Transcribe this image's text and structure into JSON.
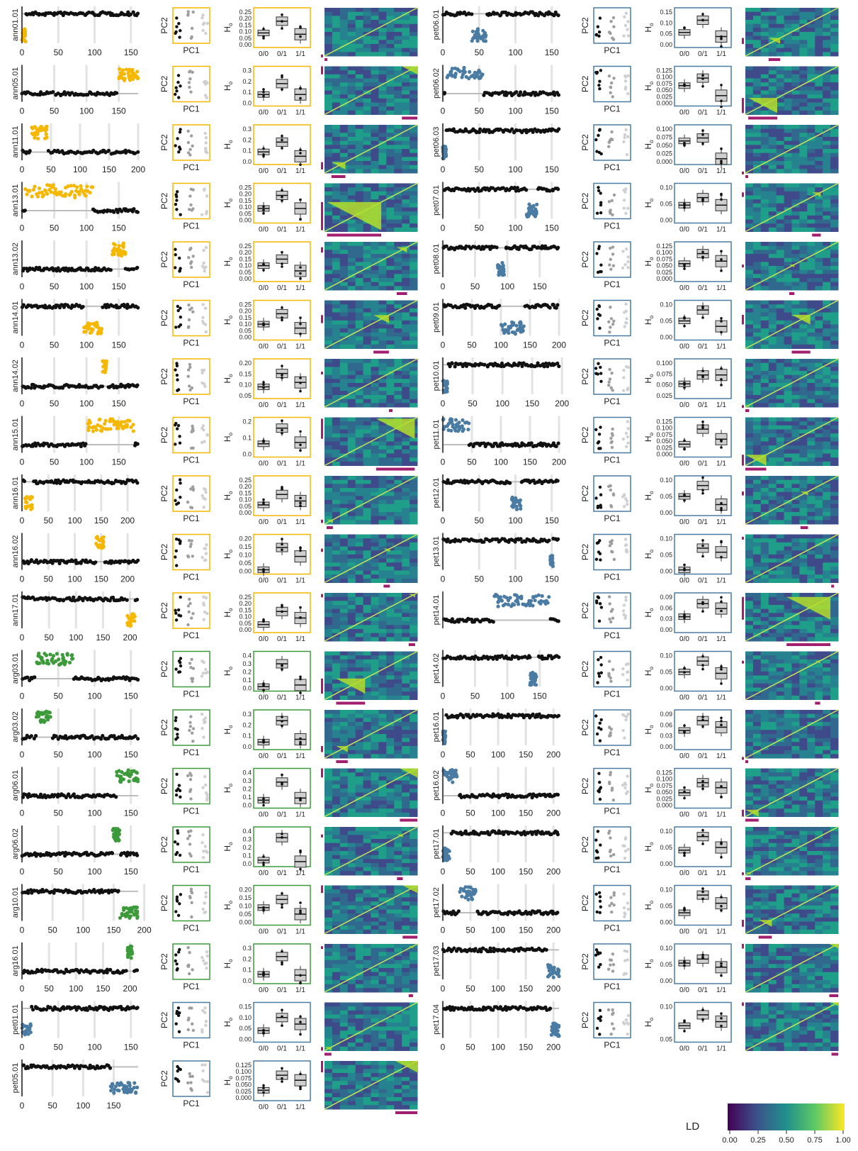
{
  "colors": {
    "annuus": "#F5B700",
    "argophyllus": "#3D9A3A",
    "petiolaris": "#4A7BA3",
    "black": "#111111",
    "grey": "#BDBDBD",
    "ld_bar": "#A21E6F",
    "frame_grey": "#4A7BA3"
  },
  "labels": {
    "pc1": "PC1",
    "pc2": "PC2",
    "ho": "H",
    "ho_sub": "o",
    "genotypes": [
      "0/0",
      "0/1",
      "1/1"
    ]
  },
  "legend": {
    "title": "LD",
    "ticks": [
      "0.00",
      "0.25",
      "0.50",
      "0.75",
      "1.00"
    ]
  },
  "chart_data": {
    "type": "multi-panel",
    "panel_types": [
      "scatter",
      "scatter",
      "box",
      "heatmap"
    ],
    "regions": [
      {
        "name": "ann01.01",
        "group": "annuus",
        "xticks": [
          "0",
          "50",
          "100",
          "150"
        ],
        "xmax": 160,
        "inv": [
          0,
          5
        ],
        "hi": false,
        "ho_ticks": [
          "0.00",
          "0.05",
          "0.10",
          "0.15",
          "0.20",
          "0.25"
        ],
        "ho_max": 0.25,
        "ho": [
          0.09,
          0.18,
          0.08
        ]
      },
      {
        "name": "ann05.01",
        "group": "annuus",
        "xticks": [
          "0",
          "50",
          "100",
          "150"
        ],
        "xmax": 180,
        "inv": [
          150,
          180
        ],
        "hi": true,
        "ho_ticks": [
          "0.0",
          "0.1",
          "0.2",
          "0.3"
        ],
        "ho_max": 0.3,
        "ho": [
          0.08,
          0.18,
          0.08
        ]
      },
      {
        "name": "ann11.01",
        "group": "annuus",
        "xticks": [
          "0",
          "50",
          "100",
          "150",
          "200"
        ],
        "xmax": 200,
        "inv": [
          15,
          45
        ],
        "hi": true,
        "ho_ticks": [
          "0.0",
          "0.1",
          "0.2",
          "0.3"
        ],
        "ho_max": 0.3,
        "ho": [
          0.09,
          0.18,
          0.05
        ]
      },
      {
        "name": "ann13.01",
        "group": "annuus",
        "xticks": [
          "0",
          "50",
          "100",
          "150"
        ],
        "xmax": 180,
        "inv": [
          5,
          110
        ],
        "hi": true,
        "ho_ticks": [
          "0.00",
          "0.05",
          "0.10",
          "0.15",
          "0.20",
          "0.25"
        ],
        "ho_max": 0.25,
        "ho": [
          0.09,
          0.19,
          0.09
        ]
      },
      {
        "name": "ann13.02",
        "group": "annuus",
        "xticks": [
          "0",
          "50",
          "100",
          "150"
        ],
        "xmax": 180,
        "inv": [
          140,
          160
        ],
        "hi": true,
        "ho_ticks": [
          "0.00",
          "0.05",
          "0.10",
          "0.15",
          "0.20",
          "0.25"
        ],
        "ho_max": 0.25,
        "ho": [
          0.1,
          0.15,
          0.06
        ]
      },
      {
        "name": "ann14.01",
        "group": "annuus",
        "xticks": [
          "0",
          "50",
          "100",
          "150"
        ],
        "xmax": 180,
        "inv": [
          95,
          125
        ],
        "hi": false,
        "ho_ticks": [
          "0.00",
          "0.05",
          "0.10",
          "0.15",
          "0.20",
          "0.25"
        ],
        "ho_max": 0.25,
        "ho": [
          0.1,
          0.18,
          0.07
        ]
      },
      {
        "name": "ann14.02",
        "group": "annuus",
        "xticks": [
          "0",
          "50",
          "100",
          "150"
        ],
        "xmax": 180,
        "inv": [
          125,
          132
        ],
        "hi": true,
        "ho_ticks": [
          "0.05",
          "0.10",
          "0.15",
          "0.20"
        ],
        "ho_max": 0.22,
        "ho": [
          0.06,
          0.15,
          0.09
        ]
      },
      {
        "name": "ann15.01",
        "group": "annuus",
        "xticks": [
          "0",
          "50",
          "100",
          "150"
        ],
        "xmax": 180,
        "inv": [
          100,
          175
        ],
        "hi": true,
        "ho_ticks": [
          "0.0",
          "0.1",
          "0.2"
        ],
        "ho_max": 0.25,
        "ho": [
          0.08,
          0.2,
          0.09
        ]
      },
      {
        "name": "ann16.01",
        "group": "annuus",
        "xticks": [
          "0",
          "50",
          "100",
          "150",
          "200"
        ],
        "xmax": 220,
        "inv": [
          5,
          20
        ],
        "hi": false,
        "ho_ticks": [
          "0.00",
          "0.05",
          "0.10",
          "0.15",
          "0.20",
          "0.25"
        ],
        "ho_max": 0.25,
        "ho": [
          0.06,
          0.14,
          0.09
        ]
      },
      {
        "name": "ann16.02",
        "group": "annuus",
        "xticks": [
          "0",
          "50",
          "100",
          "150",
          "200"
        ],
        "xmax": 220,
        "inv": [
          140,
          155
        ],
        "hi": true,
        "ho_ticks": [
          "0.00",
          "0.05",
          "0.10",
          "0.15",
          "0.20"
        ],
        "ho_max": 0.22,
        "ho": [
          0.01,
          0.16,
          0.1
        ]
      },
      {
        "name": "ann17.01",
        "group": "annuus",
        "xticks": [
          "0",
          "50",
          "100",
          "150",
          "200"
        ],
        "xmax": 215,
        "inv": [
          195,
          210
        ],
        "hi": false,
        "ho_ticks": [
          "0.00",
          "0.05",
          "0.10",
          "0.15",
          "0.20",
          "0.25"
        ],
        "ho_max": 0.25,
        "ho": [
          0.04,
          0.14,
          0.09
        ]
      },
      {
        "name": "arg03.01",
        "group": "argophyllus",
        "xticks": [
          "0",
          "50",
          "100",
          "150"
        ],
        "xmax": 160,
        "inv": [
          20,
          70
        ],
        "hi": true,
        "ho_ticks": [
          "0.0",
          "0.1",
          "0.2",
          "0.3",
          "0.4"
        ],
        "ho_max": 0.4,
        "ho": [
          0.02,
          0.3,
          0.04
        ]
      },
      {
        "name": "arg03.02",
        "group": "argophyllus",
        "xticks": [
          "0",
          "50",
          "100",
          "150"
        ],
        "xmax": 160,
        "inv": [
          20,
          40
        ],
        "hi": true,
        "ho_ticks": [
          "0.0",
          "0.1",
          "0.2",
          "0.3"
        ],
        "ho_max": 0.35,
        "ho": [
          0.05,
          0.28,
          0.08
        ]
      },
      {
        "name": "arg06.01",
        "group": "argophyllus",
        "xticks": [
          "0",
          "50",
          "100",
          "150"
        ],
        "xmax": 160,
        "inv": [
          130,
          160
        ],
        "hi": true,
        "ho_ticks": [
          "0.0",
          "0.1",
          "0.2",
          "0.3",
          "0.4"
        ],
        "ho_max": 0.45,
        "ho": [
          0.07,
          0.32,
          0.1
        ]
      },
      {
        "name": "arg06.02",
        "group": "argophyllus",
        "xticks": [
          "0",
          "50",
          "100",
          "150"
        ],
        "xmax": 160,
        "inv": [
          125,
          135
        ],
        "hi": true,
        "ho_ticks": [
          "0.0",
          "0.1",
          "0.2",
          "0.3",
          "0.4"
        ],
        "ho_max": 0.45,
        "ho": [
          0.05,
          0.36,
          0.03
        ]
      },
      {
        "name": "arg10.01",
        "group": "argophyllus",
        "xticks": [
          "0",
          "50",
          "100",
          "150",
          "200"
        ],
        "xmax": 190,
        "inv": [
          160,
          190
        ],
        "hi": false,
        "ho_ticks": [
          "0.00",
          "0.05",
          "0.10",
          "0.15",
          "0.20"
        ],
        "ho_max": 0.2,
        "ho": [
          0.09,
          0.14,
          0.05
        ]
      },
      {
        "name": "arg16.01",
        "group": "argophyllus",
        "xticks": [
          "0",
          "50",
          "100",
          "150",
          "200"
        ],
        "xmax": 215,
        "inv": [
          195,
          205
        ],
        "hi": true,
        "ho_ticks": [
          "0.0",
          "0.1",
          "0.2",
          "0.3"
        ],
        "ho_max": 0.35,
        "ho": [
          0.07,
          0.26,
          0.06
        ]
      },
      {
        "name": "pet01.01",
        "group": "petiolaris",
        "xticks": [
          "0",
          "50",
          "100",
          "150"
        ],
        "xmax": 160,
        "inv": [
          0,
          12
        ],
        "hi": false,
        "ho_ticks": [
          "0.00",
          "0.05",
          "0.10",
          "0.15"
        ],
        "ho_max": 0.15,
        "ho": [
          0.04,
          0.1,
          0.07
        ]
      },
      {
        "name": "pet05.01",
        "group": "petiolaris",
        "xticks": [
          "0",
          "50",
          "100",
          "150"
        ],
        "xmax": 190,
        "inv": [
          145,
          190
        ],
        "hi": false,
        "ho_ticks": [
          "0.000",
          "0.025",
          "0.050",
          "0.075",
          "0.100",
          "0.125"
        ],
        "ho_max": 0.13,
        "ho": [
          0.03,
          0.09,
          0.07
        ]
      },
      {
        "name": "pet06.01",
        "group": "petiolaris",
        "xticks": [
          "0",
          "50",
          "100",
          "150"
        ],
        "xmax": 160,
        "inv": [
          40,
          60
        ],
        "hi": false,
        "ho_ticks": [
          "0.00",
          "0.05",
          "0.10",
          "0.15"
        ],
        "ho_max": 0.16,
        "ho": [
          0.06,
          0.12,
          0.04
        ]
      },
      {
        "name": "pet06.02",
        "group": "petiolaris",
        "xticks": [
          "0",
          "50",
          "100",
          "150"
        ],
        "xmax": 160,
        "inv": [
          5,
          55
        ],
        "hi": true,
        "ho_ticks": [
          "0.000",
          "0.025",
          "0.050",
          "0.075",
          "0.100",
          "0.125"
        ],
        "ho_max": 0.13,
        "ho": [
          0.07,
          0.1,
          0.03
        ]
      },
      {
        "name": "pet06.03",
        "group": "petiolaris",
        "xticks": [
          "0",
          "50",
          "100",
          "150"
        ],
        "xmax": 160,
        "inv": [
          0,
          5
        ],
        "hi": false,
        "ho_ticks": [
          "0.000",
          "0.025",
          "0.050",
          "0.075",
          "0.100"
        ],
        "ho_max": 0.11,
        "ho": [
          0.07,
          0.08,
          0.01
        ]
      },
      {
        "name": "pet07.01",
        "group": "petiolaris",
        "xticks": [
          "0",
          "50",
          "100",
          "150"
        ],
        "xmax": 160,
        "inv": [
          115,
          130
        ],
        "hi": false,
        "ho_ticks": [
          "0.00",
          "0.05",
          "0.10"
        ],
        "ho_max": 0.13,
        "ho": [
          0.06,
          0.09,
          0.06
        ]
      },
      {
        "name": "pet08.01",
        "group": "petiolaris",
        "xticks": [
          "0",
          "50",
          "100",
          "150"
        ],
        "xmax": 180,
        "inv": [
          85,
          95
        ],
        "hi": false,
        "ho_ticks": [
          "0.000",
          "0.025",
          "0.050",
          "0.075",
          "0.100",
          "0.125"
        ],
        "ho_max": 0.13,
        "ho": [
          0.06,
          0.1,
          0.07
        ]
      },
      {
        "name": "pet09.01",
        "group": "petiolaris",
        "xticks": [
          "0",
          "50",
          "100",
          "150",
          "200"
        ],
        "xmax": 200,
        "inv": [
          100,
          140
        ],
        "hi": false,
        "ho_ticks": [
          "0.00",
          "0.05",
          "0.10"
        ],
        "ho_max": 0.12,
        "ho": [
          0.06,
          0.1,
          0.04
        ]
      },
      {
        "name": "pet10.01",
        "group": "petiolaris",
        "xticks": [
          "0",
          "50",
          "100",
          "150",
          "200"
        ],
        "xmax": 195,
        "inv": [
          0,
          8
        ],
        "hi": false,
        "ho_ticks": [
          "0.025",
          "0.050",
          "0.075",
          "0.100"
        ],
        "ho_max": 0.11,
        "ho": [
          0.04,
          0.07,
          0.07
        ]
      },
      {
        "name": "pet11.01",
        "group": "petiolaris",
        "xticks": [
          "0",
          "50",
          "100",
          "150",
          "200"
        ],
        "xmax": 200,
        "inv": [
          0,
          45
        ],
        "hi": true,
        "ho_ticks": [
          "0.000",
          "0.025",
          "0.050",
          "0.075",
          "0.100",
          "0.125"
        ],
        "ho_max": 0.13,
        "ho": [
          0.04,
          0.1,
          0.06
        ]
      },
      {
        "name": "pet12.01",
        "group": "petiolaris",
        "xticks": [
          "0",
          "50",
          "100",
          "150"
        ],
        "xmax": 160,
        "inv": [
          95,
          108
        ],
        "hi": false,
        "ho_ticks": [
          "0.00",
          "0.05",
          "0.10"
        ],
        "ho_max": 0.12,
        "ho": [
          0.06,
          0.1,
          0.03
        ]
      },
      {
        "name": "pet13.01",
        "group": "petiolaris",
        "xticks": [
          "0",
          "50",
          "100",
          "150"
        ],
        "xmax": 160,
        "inv": [
          148,
          152
        ],
        "hi": false,
        "ho_ticks": [
          "0.00",
          "0.05",
          "0.10"
        ],
        "ho_max": 0.12,
        "ho": [
          0.005,
          0.085,
          0.07
        ]
      },
      {
        "name": "pet14.01",
        "group": "petiolaris",
        "xticks": [],
        "xmax": 180,
        "inv": [
          80,
          165
        ],
        "hi": true,
        "ho_ticks": [
          "0.00",
          "0.03",
          "0.06",
          "0.09"
        ],
        "ho_max": 0.1,
        "ho": [
          0.04,
          0.08,
          0.065
        ]
      },
      {
        "name": "pet14.02",
        "group": "petiolaris",
        "xticks": [
          "0",
          "50",
          "100",
          "150"
        ],
        "xmax": 180,
        "inv": [
          135,
          145
        ],
        "hi": false,
        "ho_ticks": [
          "0.00",
          "0.05",
          "0.10"
        ],
        "ho_max": 0.12,
        "ho": [
          0.06,
          0.1,
          0.055
        ]
      },
      {
        "name": "pet16.01",
        "group": "petiolaris",
        "xticks": [
          "0",
          "50",
          "100",
          "150",
          "200"
        ],
        "xmax": 210,
        "inv": [
          0,
          5
        ],
        "hi": false,
        "ho_ticks": [
          "0.00",
          "0.03",
          "0.06",
          "0.09"
        ],
        "ho_max": 0.1,
        "ho": [
          0.05,
          0.08,
          0.06
        ]
      },
      {
        "name": "pet16.02",
        "group": "petiolaris",
        "xticks": [
          "0",
          "50",
          "100",
          "150",
          "200"
        ],
        "xmax": 210,
        "inv": [
          0,
          30
        ],
        "hi": true,
        "ho_ticks": [
          "0.000",
          "0.025",
          "0.050",
          "0.075",
          "0.100",
          "0.125"
        ],
        "ho_max": 0.13,
        "ho": [
          0.05,
          0.09,
          0.07
        ]
      },
      {
        "name": "pet17.01",
        "group": "petiolaris",
        "xticks": [
          "0",
          "50",
          "100",
          "150",
          "200"
        ],
        "xmax": 210,
        "inv": [
          0,
          12
        ],
        "hi": false,
        "ho_ticks": [
          "0.00",
          "0.05",
          "0.10"
        ],
        "ho_max": 0.12,
        "ho": [
          0.05,
          0.1,
          0.06
        ]
      },
      {
        "name": "pet17.02",
        "group": "petiolaris",
        "xticks": [
          "0",
          "50",
          "100",
          "150",
          "200"
        ],
        "xmax": 210,
        "inv": [
          30,
          60
        ],
        "hi": true,
        "ho_ticks": [
          "0.00",
          "0.05",
          "0.10"
        ],
        "ho_max": 0.12,
        "ho": [
          0.035,
          0.1,
          0.07
        ]
      },
      {
        "name": "pet17.03",
        "group": "petiolaris",
        "xticks": [
          "0",
          "50",
          "100",
          "150",
          "200"
        ],
        "xmax": 210,
        "inv": [
          190,
          210
        ],
        "hi": false,
        "ho_ticks": [
          "0.00",
          "0.05",
          "0.10"
        ],
        "ho_max": 0.12,
        "ho": [
          0.065,
          0.08,
          0.05
        ]
      },
      {
        "name": "pet17.04",
        "group": "petiolaris",
        "xticks": [
          "0",
          "50",
          "100",
          "150",
          "200"
        ],
        "xmax": 210,
        "inv": [
          195,
          210
        ],
        "hi": false,
        "ho_ticks": [
          "0.05",
          "0.10"
        ],
        "ho_max": 0.12,
        "ho": [
          0.05,
          0.09,
          0.065
        ]
      }
    ]
  }
}
